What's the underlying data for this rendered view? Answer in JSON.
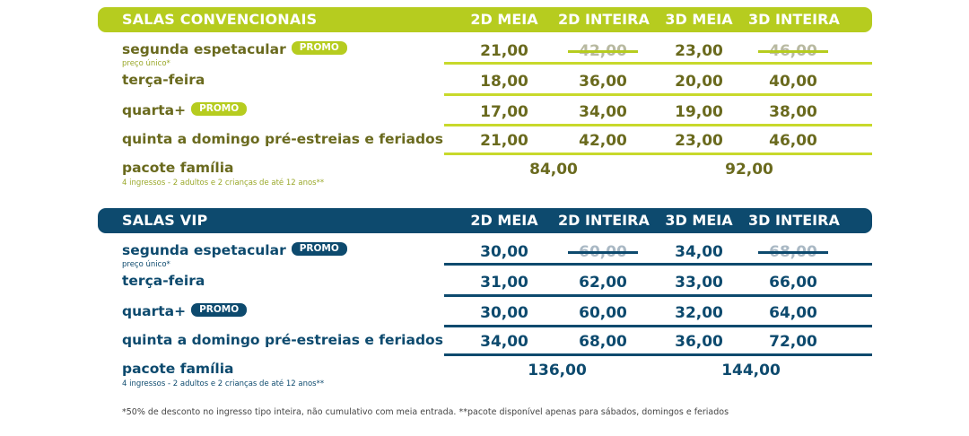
{
  "convencionais": {
    "title": "SALAS CONVENCIONAIS",
    "cols": [
      "2D MEIA",
      "2D INTEIRA",
      "3D MEIA",
      "3D INTEIRA"
    ],
    "promo_label": "PROMO",
    "rows": [
      {
        "label": "segunda espetacular",
        "sub": "preço único*",
        "values": [
          "21,00",
          "42,00",
          "23,00",
          "46,00"
        ]
      },
      {
        "label": "terça-feira",
        "values": [
          "18,00",
          "36,00",
          "20,00",
          "40,00"
        ]
      },
      {
        "label": "quarta+",
        "values": [
          "17,00",
          "34,00",
          "19,00",
          "38,00"
        ]
      },
      {
        "label": "quinta a domingo pré-estreias e feriados",
        "values": [
          "21,00",
          "42,00",
          "23,00",
          "46,00"
        ]
      },
      {
        "label": "pacote família",
        "sub": "4 ingressos - 2 adultos e 2 crianças de até 12 anos**",
        "values": [
          "84,00",
          "92,00"
        ]
      }
    ]
  },
  "vip": {
    "title": "SALAS VIP",
    "cols": [
      "2D MEIA",
      "2D INTEIRA",
      "3D MEIA",
      "3D INTEIRA"
    ],
    "promo_label": "PROMO",
    "rows": [
      {
        "label": "segunda espetacular",
        "sub": "preço único*",
        "values": [
          "30,00",
          "60,00",
          "34,00",
          "68,00"
        ]
      },
      {
        "label": "terça-feira",
        "values": [
          "31,00",
          "62,00",
          "33,00",
          "66,00"
        ]
      },
      {
        "label": "quarta+",
        "values": [
          "30,00",
          "60,00",
          "32,00",
          "64,00"
        ]
      },
      {
        "label": "quinta a domingo pré-estreias e feriados",
        "values": [
          "34,00",
          "68,00",
          "36,00",
          "72,00"
        ]
      },
      {
        "label": "pacote família",
        "sub": "4 ingressos - 2 adultos e 2 crianças de até 12 anos**",
        "values": [
          "136,00",
          "144,00"
        ]
      }
    ]
  },
  "footnote": "*50% de desconto no ingresso tipo inteira, não cumulativo com meia entrada. **pacote disponível apenas para sábados, domingos e feriados",
  "colors": {
    "convencionais_accent": "#b6cc1f",
    "convencionais_text": "#6a6a1e",
    "vip_accent": "#0d4a6e"
  }
}
